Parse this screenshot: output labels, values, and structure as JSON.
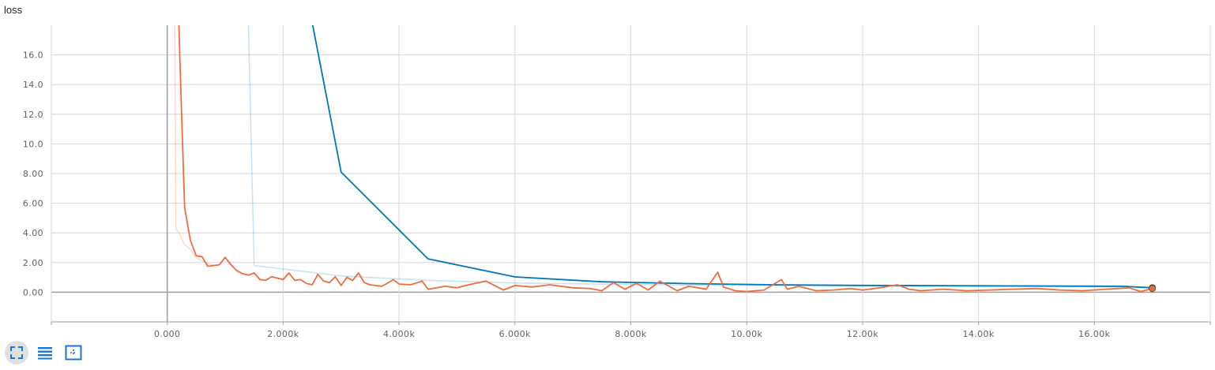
{
  "title": "loss",
  "toolbar": [
    {
      "name": "fit-domain-button",
      "icon": "fullscreen-icon",
      "active": true
    },
    {
      "name": "toggle-y-log-button",
      "icon": "list-icon",
      "active": false
    },
    {
      "name": "zoom-button",
      "icon": "zoom-selection-icon",
      "active": false
    }
  ],
  "colors": {
    "series_blue": "#0077bb",
    "series_orange": "#ee6d3d",
    "grid": "#d6d6d6",
    "axis": "#9e9e9e",
    "zero_line": "#9e9e9e"
  },
  "chart_data": {
    "type": "line",
    "title": "loss",
    "xlabel": "",
    "ylabel": "",
    "xlim": [
      -2000,
      18000
    ],
    "ylim": [
      -2.0,
      18.0
    ],
    "grid": true,
    "legend": "none",
    "x_ticks": [
      {
        "value": 0,
        "label": "0.000"
      },
      {
        "value": 2000,
        "label": "2.000k"
      },
      {
        "value": 4000,
        "label": "4.000k"
      },
      {
        "value": 6000,
        "label": "6.000k"
      },
      {
        "value": 8000,
        "label": "8.000k"
      },
      {
        "value": 10000,
        "label": "10.00k"
      },
      {
        "value": 12000,
        "label": "12.00k"
      },
      {
        "value": 14000,
        "label": "14.00k"
      },
      {
        "value": 16000,
        "label": "16.00k"
      }
    ],
    "y_ticks": [
      {
        "value": 0,
        "label": "0.00"
      },
      {
        "value": 2,
        "label": "2.00"
      },
      {
        "value": 4,
        "label": "4.00"
      },
      {
        "value": 6,
        "label": "6.00"
      },
      {
        "value": 8,
        "label": "8.00"
      },
      {
        "value": 10,
        "label": "10.0"
      },
      {
        "value": 12,
        "label": "12.0"
      },
      {
        "value": 14,
        "label": "14.0"
      },
      {
        "value": 16,
        "label": "16.0"
      }
    ],
    "series": [
      {
        "color": "#0077bb",
        "x": [
          2500,
          3000,
          4500,
          6000,
          7500,
          9000,
          10500,
          12000,
          13500,
          15000,
          16500,
          17000
        ],
        "y": [
          18.2,
          8.1,
          2.25,
          1.03,
          0.7,
          0.58,
          0.5,
          0.46,
          0.44,
          0.42,
          0.4,
          0.3
        ],
        "raw_x": [
          1400,
          1500,
          3000,
          4500,
          6000,
          7500,
          9000,
          10500,
          12000,
          13500,
          15000,
          16500,
          17000
        ],
        "raw_y": [
          18.2,
          1.8,
          1.1,
          0.8,
          0.62,
          0.55,
          0.48,
          0.45,
          0.42,
          0.4,
          0.38,
          0.36,
          0.3
        ]
      },
      {
        "color": "#ee6d3d",
        "x": [
          200,
          220,
          300,
          400,
          500,
          600,
          700,
          800,
          900,
          1000,
          1100,
          1200,
          1300,
          1400,
          1500,
          1600,
          1700,
          1800,
          1900,
          2000,
          2100,
          2200,
          2300,
          2400,
          2500,
          2600,
          2700,
          2800,
          2900,
          3000,
          3100,
          3200,
          3300,
          3400,
          3500,
          3600,
          3700,
          3800,
          3900,
          4000,
          4200,
          4400,
          4500,
          4800,
          5000,
          5200,
          5500,
          5800,
          6000,
          6300,
          6600,
          7000,
          7300,
          7500,
          7700,
          7900,
          8100,
          8300,
          8500,
          8800,
          9000,
          9300,
          9500,
          9600,
          9800,
          10000,
          10300,
          10600,
          10700,
          10900,
          11200,
          11500,
          11800,
          12000,
          12300,
          12600,
          12800,
          13000,
          13400,
          13800,
          14200,
          14600,
          15000,
          15400,
          15800,
          16200,
          16600,
          16800,
          17000
        ],
        "y": [
          18.2,
          15.5,
          5.7,
          3.5,
          2.45,
          2.4,
          1.75,
          1.8,
          1.85,
          2.35,
          1.85,
          1.45,
          1.25,
          1.15,
          1.3,
          0.85,
          0.8,
          1.05,
          0.95,
          0.85,
          1.3,
          0.8,
          0.85,
          0.6,
          0.5,
          1.2,
          0.75,
          0.65,
          1.05,
          0.45,
          1.0,
          0.8,
          1.3,
          0.65,
          0.5,
          0.45,
          0.4,
          0.6,
          0.85,
          0.55,
          0.5,
          0.75,
          0.2,
          0.4,
          0.3,
          0.5,
          0.75,
          0.15,
          0.45,
          0.35,
          0.5,
          0.3,
          0.25,
          0.1,
          0.65,
          0.2,
          0.6,
          0.15,
          0.75,
          0.1,
          0.4,
          0.2,
          1.35,
          0.35,
          0.1,
          0.05,
          0.15,
          0.85,
          0.2,
          0.4,
          0.1,
          0.15,
          0.25,
          0.15,
          0.3,
          0.5,
          0.2,
          0.1,
          0.2,
          0.1,
          0.15,
          0.2,
          0.25,
          0.15,
          0.1,
          0.2,
          0.3,
          0.05,
          0.25
        ]
      }
    ]
  }
}
